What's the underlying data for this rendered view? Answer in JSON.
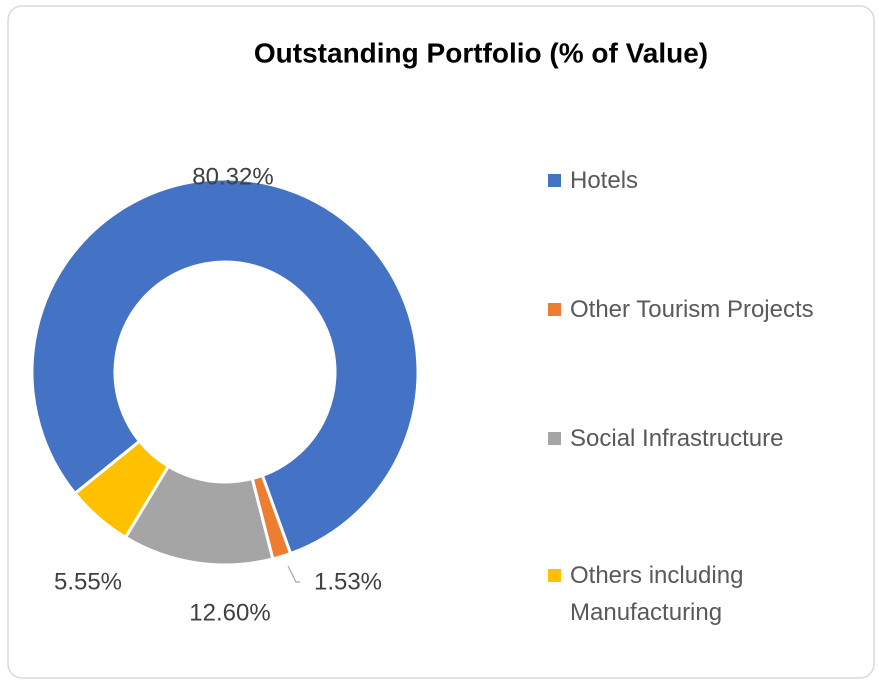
{
  "chart_data": {
    "type": "donut",
    "title": "Outstanding Portfolio (% of Value)",
    "categories": [
      "Hotels",
      "Other Tourism Projects",
      "Social Infrastructure",
      "Others including Manufacturing"
    ],
    "values": [
      80.32,
      1.53,
      12.6,
      5.55
    ],
    "value_labels": [
      "80.32%",
      "1.53%",
      "12.60%",
      "5.55%"
    ],
    "colors": [
      "#4472c4",
      "#ed7d31",
      "#a5a5a5",
      "#ffc000"
    ],
    "legend": "right"
  }
}
